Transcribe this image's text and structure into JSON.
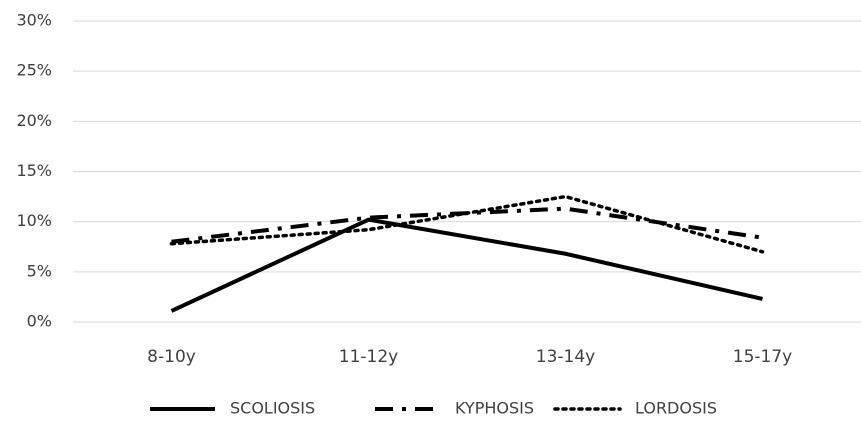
{
  "chart_data": {
    "type": "line",
    "categories": [
      "8-10y",
      "11-12y",
      "13-14y",
      "15-17y"
    ],
    "series": [
      {
        "name": "SCOLIOSIS",
        "color": "#000000",
        "dash": "solid",
        "values": [
          1.1,
          10.2,
          6.8,
          2.3
        ]
      },
      {
        "name": "KYPHOSIS",
        "color": "#000000",
        "dash": "dash-dot",
        "values": [
          8.0,
          10.4,
          11.3,
          8.4
        ]
      },
      {
        "name": "LORDOSIS",
        "color": "#000000",
        "dash": "dot",
        "values": [
          7.8,
          9.2,
          12.5,
          7.0
        ]
      }
    ],
    "ylim": [
      0,
      30
    ],
    "yticks": [
      {
        "value": 0,
        "label": "0%"
      },
      {
        "value": 5,
        "label": "5%"
      },
      {
        "value": 10,
        "label": "10%"
      },
      {
        "value": 15,
        "label": "15%"
      },
      {
        "value": 20,
        "label": "20%"
      },
      {
        "value": 25,
        "label": "25%"
      },
      {
        "value": 30,
        "label": "30%"
      }
    ],
    "grid": true,
    "legend": "bottom"
  }
}
